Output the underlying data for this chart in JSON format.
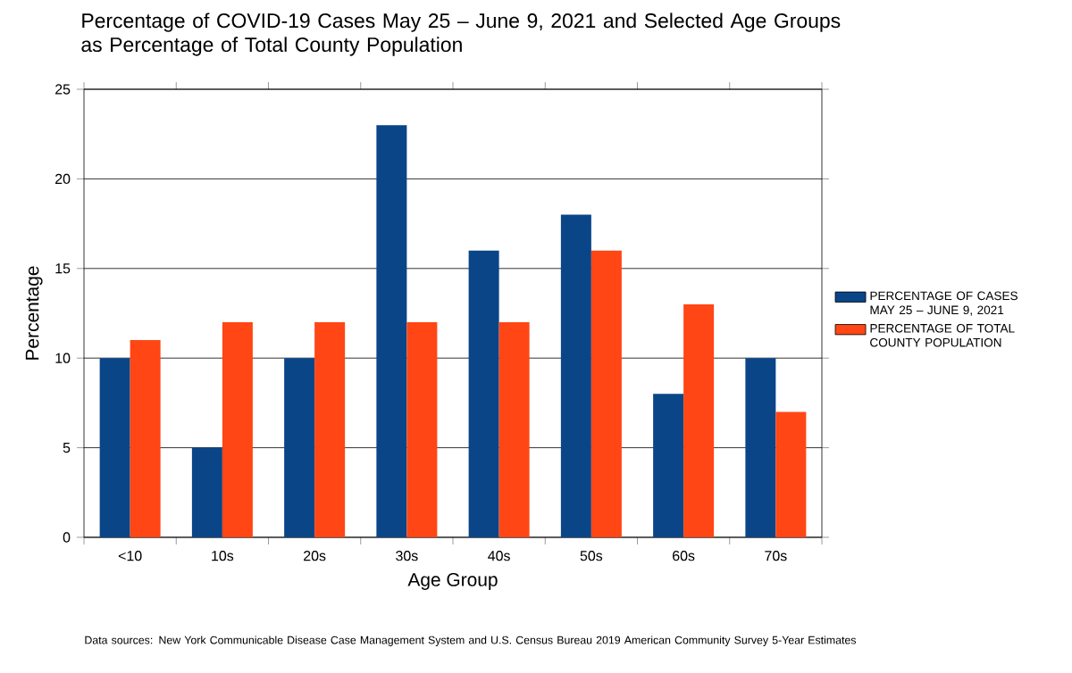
{
  "chart_data": {
    "type": "bar",
    "title": "Percentage of COVID-19 Cases May 25 – June 9, 2021 and Selected Age Groups as Percentage of Total County Population",
    "xlabel": "Age Group",
    "ylabel": "Percentage",
    "categories": [
      "<10",
      "10s",
      "20s",
      "30s",
      "40s",
      "50s",
      "60s",
      "70s"
    ],
    "series": [
      {
        "name": "PERCENTAGE OF CASES MAY 25 – JUNE 9, 2021",
        "color": "#0a4588",
        "values": [
          10,
          5,
          10,
          23,
          16,
          18,
          8,
          10
        ]
      },
      {
        "name": "PERCENTAGE OF TOTAL COUNTY POPULATION",
        "color": "#ff4614",
        "values": [
          11,
          12,
          12,
          12,
          12,
          16,
          13,
          7
        ]
      }
    ],
    "ylim": [
      0,
      25
    ],
    "yticks": [
      0,
      5,
      10,
      15,
      20,
      25
    ],
    "grid": "y",
    "legend": "right",
    "annotations": [
      "Data sources: New York Communicable Disease Case Management System and U.S. Census Bureau 2019 American Community Survey 5-Year Estimates"
    ]
  }
}
